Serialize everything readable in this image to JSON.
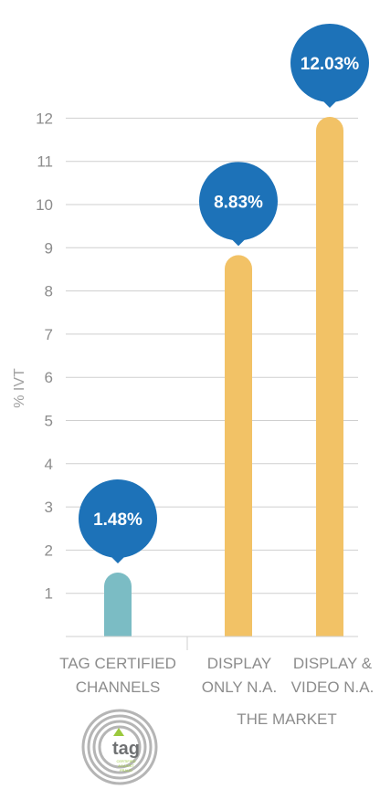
{
  "chart_data": {
    "type": "bar",
    "categories": [
      [
        "TAG CERTIFIED",
        "CHANNELS"
      ],
      [
        "DISPLAY",
        "ONLY N.A."
      ],
      [
        "DISPLAY &",
        "VIDEO N.A."
      ]
    ],
    "values": [
      1.48,
      8.83,
      12.03
    ],
    "value_labels": [
      "1.48%",
      "8.83%",
      "12.03%"
    ],
    "ylabel": "% IVT",
    "ylim": [
      0,
      12
    ],
    "yticks": [
      1,
      2,
      3,
      4,
      5,
      6,
      7,
      8,
      9,
      10,
      11,
      12
    ],
    "grid": true,
    "group_label": "THE MARKET",
    "colors": {
      "tag_bar": "#7bbcc4",
      "market_bar": "#f2c266",
      "pin": "#1d72b8",
      "grid": "#cfcfcf",
      "text": "#8c8c8c"
    }
  },
  "logo": {
    "text": "tag",
    "small_lines": [
      "CERTIFIED",
      "AGAINST",
      "FRAUD"
    ]
  }
}
